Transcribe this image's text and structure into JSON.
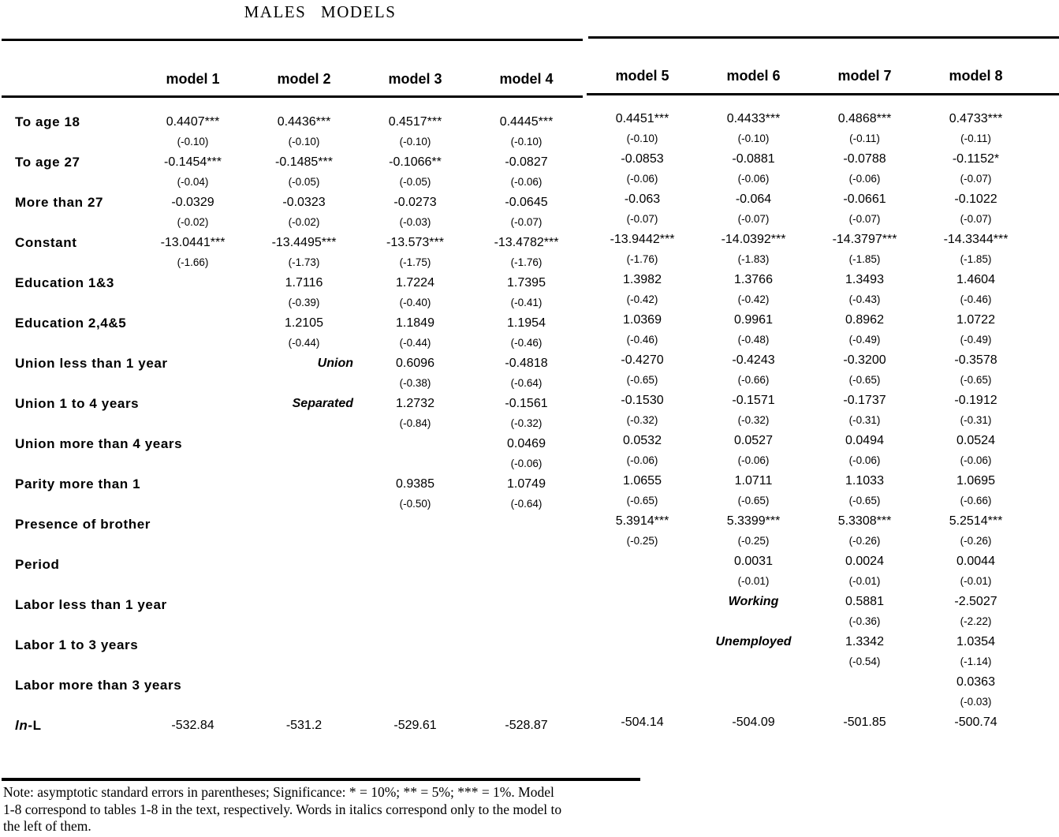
{
  "title": "MALES MODELS",
  "table": {
    "column_headers": [
      "model 1",
      "model 2",
      "model 3",
      "model 4",
      "model 5",
      "model 6",
      "model 7",
      "model 8"
    ],
    "rows": [
      {
        "label": "To age 18",
        "cells": [
          {
            "coef": "0.4407***",
            "se": "(-0.10)"
          },
          {
            "coef": "0.4436***",
            "se": "(-0.10)"
          },
          {
            "coef": "0.4517***",
            "se": "(-0.10)"
          },
          {
            "coef": "0.4445***",
            "se": "(-0.10)"
          },
          {
            "coef": "0.4451***",
            "se": "(-0.10)"
          },
          {
            "coef": "0.4433***",
            "se": "(-0.10)"
          },
          {
            "coef": "0.4868***",
            "se": "(-0.11)"
          },
          {
            "coef": "0.4733***",
            "se": "(-0.11)"
          }
        ]
      },
      {
        "label": "To age 27",
        "cells": [
          {
            "coef": "-0.1454***",
            "se": "(-0.04)"
          },
          {
            "coef": "-0.1485***",
            "se": "(-0.05)"
          },
          {
            "coef": "-0.1066**",
            "se": "(-0.05)"
          },
          {
            "coef": "-0.0827",
            "se": "(-0.06)"
          },
          {
            "coef": "-0.0853",
            "se": "(-0.06)"
          },
          {
            "coef": "-0.0881",
            "se": "(-0.06)"
          },
          {
            "coef": "-0.0788",
            "se": "(-0.06)"
          },
          {
            "coef": "-0.1152*",
            "se": "(-0.07)"
          }
        ]
      },
      {
        "label": "More than 27",
        "cells": [
          {
            "coef": "-0.0329",
            "se": "(-0.02)"
          },
          {
            "coef": "-0.0323",
            "se": "(-0.02)"
          },
          {
            "coef": "-0.0273",
            "se": "(-0.03)"
          },
          {
            "coef": "-0.0645",
            "se": "(-0.07)"
          },
          {
            "coef": "-0.063",
            "se": "(-0.07)"
          },
          {
            "coef": "-0.064",
            "se": "(-0.07)"
          },
          {
            "coef": "-0.0661",
            "se": "(-0.07)"
          },
          {
            "coef": "-0.1022",
            "se": "(-0.07)"
          }
        ]
      },
      {
        "label": "Constant",
        "cells": [
          {
            "coef": "-13.0441***",
            "se": "(-1.66)"
          },
          {
            "coef": "-13.4495***",
            "se": "(-1.73)"
          },
          {
            "coef": "-13.573***",
            "se": "(-1.75)"
          },
          {
            "coef": "-13.4782***",
            "se": "(-1.76)"
          },
          {
            "coef": "-13.9442***",
            "se": "(-1.76)"
          },
          {
            "coef": "-14.0392***",
            "se": "(-1.83)"
          },
          {
            "coef": "-14.3797***",
            "se": "(-1.85)"
          },
          {
            "coef": "-14.3344***",
            "se": "(-1.85)"
          }
        ]
      },
      {
        "label": "Education 1&3",
        "cells": [
          null,
          {
            "coef": "1.7116",
            "se": "(-0.39)"
          },
          {
            "coef": "1.7224",
            "se": "(-0.40)"
          },
          {
            "coef": "1.7395",
            "se": "(-0.41)"
          },
          {
            "coef": "1.3982",
            "se": "(-0.42)"
          },
          {
            "coef": "1.3766",
            "se": "(-0.42)"
          },
          {
            "coef": "1.3493",
            "se": "(-0.43)"
          },
          {
            "coef": "1.4604",
            "se": "(-0.46)"
          }
        ]
      },
      {
        "label": "Education 2,4&5",
        "cells": [
          null,
          {
            "coef": "1.2105",
            "se": "(-0.44)"
          },
          {
            "coef": "1.1849",
            "se": "(-0.44)"
          },
          {
            "coef": "1.1954",
            "se": "(-0.46)"
          },
          {
            "coef": "1.0369",
            "se": "(-0.46)"
          },
          {
            "coef": "0.9961",
            "se": "(-0.48)"
          },
          {
            "coef": "0.8962",
            "se": "(-0.49)"
          },
          {
            "coef": "1.0722",
            "se": "(-0.49)"
          }
        ]
      },
      {
        "label": "Union less than 1 year",
        "cells": [
          null,
          {
            "italic": "Union"
          },
          {
            "coef": "0.6096",
            "se": "(-0.38)"
          },
          {
            "coef": "-0.4818",
            "se": "(-0.64)"
          },
          {
            "coef": "-0.4270",
            "se": "(-0.65)"
          },
          {
            "coef": "-0.4243",
            "se": "(-0.66)"
          },
          {
            "coef": "-0.3200",
            "se": "(-0.65)"
          },
          {
            "coef": "-0.3578",
            "se": "(-0.65)"
          }
        ]
      },
      {
        "label": "Union 1 to 4 years",
        "cells": [
          null,
          {
            "italic": "Separated"
          },
          {
            "coef": "1.2732",
            "se": "(-0.84)"
          },
          {
            "coef": "-0.1561",
            "se": "(-0.32)"
          },
          {
            "coef": "-0.1530",
            "se": "(-0.32)"
          },
          {
            "coef": "-0.1571",
            "se": "(-0.32)"
          },
          {
            "coef": "-0.1737",
            "se": "(-0.31)"
          },
          {
            "coef": "-0.1912",
            "se": "(-0.31)"
          }
        ]
      },
      {
        "label": "Union more than 4 years",
        "cells": [
          null,
          null,
          null,
          {
            "coef": "0.0469",
            "se": "(-0.06)"
          },
          {
            "coef": "0.0532",
            "se": "(-0.06)"
          },
          {
            "coef": "0.0527",
            "se": "(-0.06)"
          },
          {
            "coef": "0.0494",
            "se": "(-0.06)"
          },
          {
            "coef": "0.0524",
            "se": "(-0.06)"
          }
        ]
      },
      {
        "label": "Parity more than 1",
        "cells": [
          null,
          null,
          {
            "coef": "0.9385",
            "se": "(-0.50)"
          },
          {
            "coef": "1.0749",
            "se": "(-0.64)"
          },
          {
            "coef": "1.0655",
            "se": "(-0.65)"
          },
          {
            "coef": "1.0711",
            "se": "(-0.65)"
          },
          {
            "coef": "1.1033",
            "se": "(-0.65)"
          },
          {
            "coef": "1.0695",
            "se": "(-0.66)"
          }
        ]
      },
      {
        "label": "Presence of brother",
        "cells": [
          null,
          null,
          null,
          null,
          {
            "coef": "5.3914***",
            "se": "(-0.25)"
          },
          {
            "coef": "5.3399***",
            "se": "(-0.25)"
          },
          {
            "coef": "5.3308***",
            "se": "(-0.26)"
          },
          {
            "coef": "5.2514***",
            "se": "(-0.26)"
          }
        ]
      },
      {
        "label": "Period",
        "cells": [
          null,
          null,
          null,
          null,
          null,
          {
            "coef": "0.0031",
            "se": "(-0.01)"
          },
          {
            "coef": "0.0024",
            "se": "(-0.01)"
          },
          {
            "coef": "0.0044",
            "se": "(-0.01)"
          }
        ]
      },
      {
        "label": "Labor less than 1 year",
        "cells": [
          null,
          null,
          null,
          null,
          null,
          {
            "italic": "Working"
          },
          {
            "coef": "0.5881",
            "se": "(-0.36)"
          },
          {
            "coef": "-2.5027",
            "se": "(-2.22)"
          }
        ]
      },
      {
        "label": "Labor 1 to 3 years",
        "cells": [
          null,
          null,
          null,
          null,
          null,
          {
            "italic": "Unemployed"
          },
          {
            "coef": "1.3342",
            "se": "(-0.54)"
          },
          {
            "coef": "1.0354",
            "se": "(-1.14)"
          }
        ]
      },
      {
        "label": "Labor more than 3 years",
        "cells": [
          null,
          null,
          null,
          null,
          null,
          null,
          null,
          {
            "coef": "0.0363",
            "se": "(-0.03)"
          }
        ]
      },
      {
        "label_parts": [
          {
            "text": "ln",
            "italic": true
          },
          {
            "text": "-L"
          }
        ],
        "single": true,
        "cells": [
          {
            "coef": "-532.84"
          },
          {
            "coef": "-531.2"
          },
          {
            "coef": "-529.61"
          },
          {
            "coef": "-528.87"
          },
          {
            "coef": "-504.14"
          },
          {
            "coef": "-504.09"
          },
          {
            "coef": "-501.85"
          },
          {
            "coef": "-500.74"
          }
        ]
      }
    ]
  },
  "note": {
    "lines": [
      "Note: asymptotic standard errors in parentheses; Significance: * = 10%; ** = 5%; *** = 1%. Model",
      "1-8 correspond to tables 1-8 in the text, respectively. Words in italics correspond only to the model to",
      "the left of them."
    ]
  }
}
